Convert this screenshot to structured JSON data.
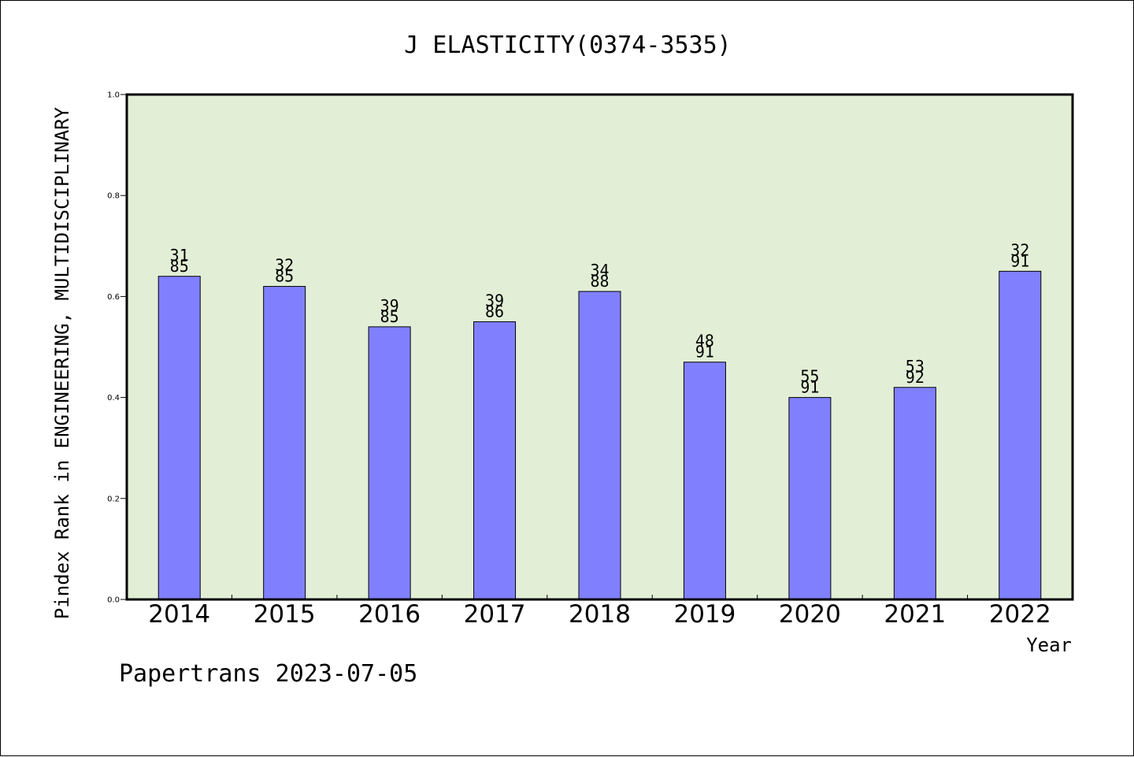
{
  "chart_data": {
    "type": "bar",
    "title": "J ELASTICITY(0374-3535)",
    "xlabel": "Year",
    "ylabel": "Pindex Rank in ENGINEERING, MULTIDISCIPLINARY",
    "ylim": [
      0,
      1.0
    ],
    "yticks": [
      "0.0",
      "0.2",
      "0.4",
      "0.6",
      "0.8",
      "1.0"
    ],
    "categories": [
      "2014",
      "2015",
      "2016",
      "2017",
      "2018",
      "2019",
      "2020",
      "2021",
      "2022"
    ],
    "values": [
      0.64,
      0.62,
      0.54,
      0.55,
      0.61,
      0.47,
      0.4,
      0.42,
      0.65
    ],
    "label_top": [
      "31",
      "32",
      "39",
      "39",
      "34",
      "48",
      "55",
      "53",
      "32"
    ],
    "label_bottom": [
      "85",
      "85",
      "85",
      "86",
      "88",
      "91",
      "91",
      "92",
      "91"
    ],
    "grid": false,
    "colors": {
      "plot_bg": "#e2efd6",
      "bar": "#8080ff",
      "frame": "#000000"
    }
  },
  "footer": {
    "credit": "Papertrans 2023-07-05"
  }
}
